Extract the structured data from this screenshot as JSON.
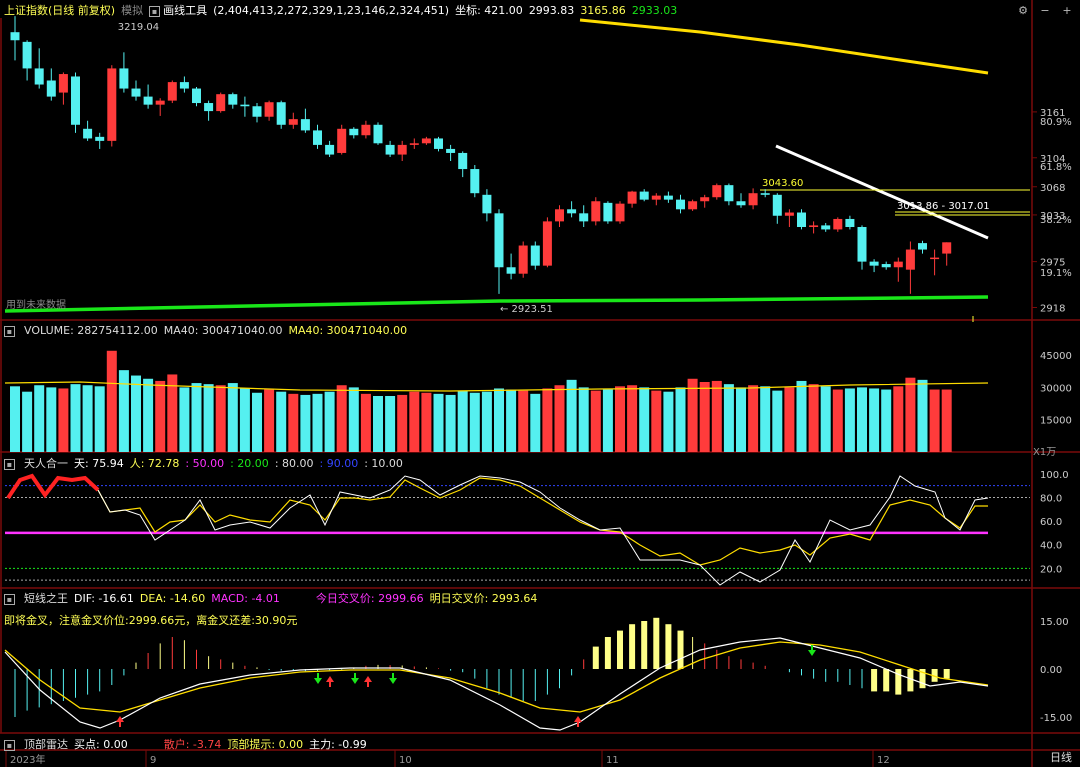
{
  "main": {
    "title": "上证指数(日线 前复权)",
    "mode": "模拟",
    "tool_label": "画线工具",
    "tool_params": "(2,404,413,2,272,329,1,23,146,2,324,451)",
    "coord_label": "坐标: 421.00",
    "coord_price": "2993.83",
    "cursor_price1": "3165.86",
    "cursor_price2": "2933.03",
    "high_label": "3219.04",
    "low_label": "← 2923.51",
    "future_data_label": "用到未来数据",
    "line_label1": "3043.60",
    "line_label2": "3013.86 - 3017.01",
    "y_ticks": [
      "3161",
      "3104",
      "3068",
      "3033",
      "2975",
      "2918"
    ],
    "pct_ticks": [
      "80.9%",
      "61.8%",
      "38.2%",
      "19.1%"
    ]
  },
  "volume": {
    "title": "VOLUME: 282754112.00",
    "ma_a": "MA40: 300471040.00",
    "ma_b": "MA40: 300471040.00",
    "y_ticks": [
      "45000",
      "30000",
      "15000"
    ],
    "unit": "X1万"
  },
  "tianren": {
    "title": "天人合一",
    "tian": "天: 75.94",
    "ren": "人: 72.78",
    "l50": ": 50.00",
    "l20": ": 20.00",
    "l80": ": 80.00",
    "l90": ": 90.00",
    "l10": ": 10.00",
    "y_ticks": [
      "100.0",
      "80.0",
      "60.0",
      "40.0",
      "20.0"
    ]
  },
  "macd": {
    "title": "短线之王",
    "dif": "DIF: -16.61",
    "dea": "DEA: -14.60",
    "macd": "MACD: -4.01",
    "today_cross": "今日交叉价: 2999.66",
    "tomorrow_cross": "明日交叉价: 2993.64",
    "hint": "即将金叉，注意金叉价位:2999.66元，离金叉还差:30.90元",
    "y_ticks": [
      "15.00",
      "0.00",
      "-15.00"
    ]
  },
  "radar": {
    "title": "顶部雷达",
    "buy": "买点: 0.00",
    "retail": "散户: -3.74",
    "top_hint": "顶部提示: 0.00",
    "main_force": "主力: -0.99"
  },
  "xaxis": {
    "labels": [
      "2023年",
      "9",
      "10",
      "11",
      "12"
    ]
  },
  "period_button": "日线",
  "colors": {
    "up": "#ff3b3b",
    "down": "#55f0f0",
    "yellow": "#ffff00",
    "green": "#19e619",
    "magenta": "#ff33ff"
  },
  "candles": [
    [
      3260,
      3280,
      3225,
      3250
    ],
    [
      3248,
      3250,
      3200,
      3215
    ],
    [
      3215,
      3240,
      3190,
      3195
    ],
    [
      3200,
      3215,
      3175,
      3180
    ],
    [
      3185,
      3210,
      3170,
      3208
    ],
    [
      3205,
      3210,
      3135,
      3145
    ],
    [
      3140,
      3150,
      3125,
      3128
    ],
    [
      3130,
      3135,
      3115,
      3125
    ],
    [
      3125,
      3219,
      3118,
      3215
    ],
    [
      3215,
      3235,
      3185,
      3190
    ],
    [
      3190,
      3200,
      3175,
      3180
    ],
    [
      3180,
      3195,
      3165,
      3170
    ],
    [
      3170,
      3178,
      3156,
      3175
    ],
    [
      3175,
      3200,
      3172,
      3198
    ],
    [
      3198,
      3205,
      3185,
      3190
    ],
    [
      3190,
      3192,
      3168,
      3172
    ],
    [
      3172,
      3175,
      3150,
      3162
    ],
    [
      3162,
      3185,
      3160,
      3183
    ],
    [
      3183,
      3185,
      3165,
      3170
    ],
    [
      3170,
      3180,
      3155,
      3168
    ],
    [
      3168,
      3172,
      3148,
      3155
    ],
    [
      3155,
      3175,
      3150,
      3173
    ],
    [
      3173,
      3175,
      3140,
      3145
    ],
    [
      3145,
      3160,
      3140,
      3152
    ],
    [
      3152,
      3165,
      3135,
      3138
    ],
    [
      3138,
      3145,
      3115,
      3120
    ],
    [
      3120,
      3125,
      3105,
      3108
    ],
    [
      3110,
      3145,
      3108,
      3140
    ],
    [
      3140,
      3142,
      3128,
      3132
    ],
    [
      3132,
      3150,
      3128,
      3145
    ],
    [
      3145,
      3148,
      3120,
      3122
    ],
    [
      3120,
      3125,
      3105,
      3108
    ],
    [
      3108,
      3125,
      3100,
      3120
    ],
    [
      3120,
      3128,
      3115,
      3122
    ],
    [
      3122,
      3130,
      3120,
      3128
    ],
    [
      3128,
      3130,
      3112,
      3115
    ],
    [
      3115,
      3120,
      3100,
      3110
    ],
    [
      3110,
      3112,
      3080,
      3090
    ],
    [
      3090,
      3095,
      3055,
      3060
    ],
    [
      3058,
      3065,
      3025,
      3035
    ],
    [
      3035,
      3040,
      2935,
      2968
    ],
    [
      2968,
      2985,
      2953,
      2960
    ],
    [
      2960,
      3000,
      2955,
      2995
    ],
    [
      2995,
      3000,
      2965,
      2970
    ],
    [
      2970,
      3030,
      2968,
      3025
    ],
    [
      3025,
      3045,
      3018,
      3040
    ],
    [
      3040,
      3050,
      3030,
      3035
    ],
    [
      3035,
      3045,
      3018,
      3025
    ],
    [
      3025,
      3055,
      3020,
      3050
    ],
    [
      3048,
      3050,
      3022,
      3025
    ],
    [
      3025,
      3050,
      3022,
      3047
    ],
    [
      3047,
      3063,
      3042,
      3062
    ],
    [
      3062,
      3065,
      3050,
      3052
    ],
    [
      3052,
      3060,
      3045,
      3057
    ],
    [
      3057,
      3062,
      3048,
      3052
    ],
    [
      3052,
      3058,
      3035,
      3040
    ],
    [
      3040,
      3052,
      3038,
      3050
    ],
    [
      3050,
      3058,
      3042,
      3055
    ],
    [
      3055,
      3072,
      3052,
      3070
    ],
    [
      3070,
      3072,
      3045,
      3050
    ],
    [
      3050,
      3060,
      3042,
      3045
    ],
    [
      3045,
      3066,
      3040,
      3060
    ],
    [
      3060,
      3065,
      3055,
      3058
    ],
    [
      3058,
      3060,
      3022,
      3032
    ],
    [
      3032,
      3040,
      3018,
      3036
    ],
    [
      3036,
      3040,
      3015,
      3018
    ],
    [
      3018,
      3025,
      3010,
      3020
    ],
    [
      3020,
      3023,
      3012,
      3015
    ],
    [
      3015,
      3030,
      3012,
      3028
    ],
    [
      3028,
      3032,
      3015,
      3018
    ],
    [
      3018,
      3020,
      2965,
      2975
    ],
    [
      2975,
      2978,
      2962,
      2970
    ],
    [
      2972,
      2975,
      2965,
      2968
    ],
    [
      2968,
      2980,
      2950,
      2975
    ],
    [
      2965,
      3000,
      2935,
      2990
    ],
    [
      2998,
      3001,
      2985,
      2990
    ],
    [
      2980,
      2990,
      2958,
      2980
    ],
    [
      2985,
      2999,
      2970,
      2999
    ]
  ],
  "pivot_index": 40
}
